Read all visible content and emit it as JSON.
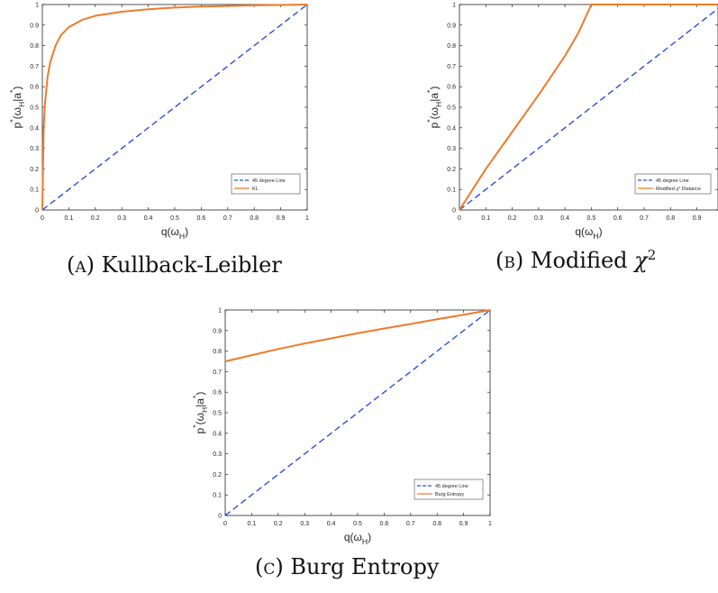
{
  "charts": [
    {
      "id": "a",
      "caption_tag": "(a)",
      "caption_text": "Kullback-Leibler",
      "chart_data": {
        "type": "line",
        "xlabel": "q(ω_H)",
        "ylabel": "p*(ω_H|a*)",
        "xlim": [
          0,
          1
        ],
        "ylim": [
          0,
          1
        ],
        "xticks": [
          0,
          0.1,
          0.2,
          0.3,
          0.4,
          0.5,
          0.6,
          0.7,
          0.8,
          0.9,
          1
        ],
        "yticks": [
          0,
          0.1,
          0.2,
          0.3,
          0.4,
          0.5,
          0.6,
          0.7,
          0.8,
          0.9,
          1
        ],
        "grid": false,
        "legend": "bottom-right",
        "series": [
          {
            "name": "45 degree Line",
            "color": "#2b4ee0",
            "style": "dashed",
            "x": [
              0,
              1
            ],
            "y": [
              0,
              1
            ]
          },
          {
            "name": "KL",
            "color": "#f07a2a",
            "style": "solid",
            "x": [
              0,
              0.005,
              0.01,
              0.02,
              0.03,
              0.05,
              0.07,
              0.1,
              0.15,
              0.2,
              0.3,
              0.4,
              0.5,
              0.6,
              0.7,
              0.8,
              0.9,
              1
            ],
            "y": [
              0,
              0.4,
              0.52,
              0.65,
              0.72,
              0.8,
              0.85,
              0.89,
              0.925,
              0.945,
              0.965,
              0.977,
              0.985,
              0.99,
              0.993,
              0.996,
              0.998,
              1
            ]
          }
        ]
      }
    },
    {
      "id": "b",
      "caption_tag": "(b)",
      "caption_text": "Modified ",
      "caption_sym": "χ",
      "caption_sup": "2",
      "chart_data": {
        "type": "line",
        "xlabel": "q(ω_H)",
        "ylabel": "p*(ω_H|a*)",
        "xlim": [
          0,
          0.98
        ],
        "ylim": [
          0,
          1
        ],
        "xticks": [
          0,
          0.1,
          0.2,
          0.3,
          0.4,
          0.5,
          0.6,
          0.7,
          0.8,
          0.9
        ],
        "yticks": [
          0,
          0.1,
          0.2,
          0.3,
          0.4,
          0.5,
          0.6,
          0.7,
          0.8,
          0.9,
          1
        ],
        "grid": false,
        "legend": "bottom-right",
        "series": [
          {
            "name": "45 degree Line",
            "color": "#2b4ee0",
            "style": "dashed",
            "x": [
              0,
              0.98
            ],
            "y": [
              0,
              0.98
            ]
          },
          {
            "name": "Modified χ² Distance",
            "color": "#f07a2a",
            "style": "solid",
            "x": [
              0,
              0.05,
              0.1,
              0.15,
              0.2,
              0.25,
              0.3,
              0.35,
              0.4,
              0.45,
              0.5,
              0.6,
              0.7,
              0.8,
              0.9,
              0.98
            ],
            "y": [
              0,
              0.1,
              0.2,
              0.29,
              0.38,
              0.47,
              0.56,
              0.655,
              0.75,
              0.86,
              1,
              1,
              1,
              1,
              1,
              1
            ]
          }
        ]
      }
    },
    {
      "id": "c",
      "caption_tag": "(c)",
      "caption_text": "Burg Entropy",
      "chart_data": {
        "type": "line",
        "xlabel": "q(ω_H)",
        "ylabel": "p*(ω_H|a*)",
        "xlim": [
          0,
          1
        ],
        "ylim": [
          0,
          1
        ],
        "xticks": [
          0,
          0.1,
          0.2,
          0.3,
          0.4,
          0.5,
          0.6,
          0.7,
          0.8,
          0.9,
          1
        ],
        "yticks": [
          0,
          0.1,
          0.2,
          0.3,
          0.4,
          0.5,
          0.6,
          0.7,
          0.8,
          0.9,
          1
        ],
        "grid": false,
        "legend": "bottom-right",
        "series": [
          {
            "name": "45 degree Line",
            "color": "#2b4ee0",
            "style": "dashed",
            "x": [
              0,
              1
            ],
            "y": [
              0,
              1
            ]
          },
          {
            "name": "Burg Entropy",
            "color": "#f07a2a",
            "style": "solid",
            "x": [
              0,
              0.1,
              0.2,
              0.3,
              0.4,
              0.5,
              0.6,
              0.7,
              0.8,
              0.9,
              1
            ],
            "y": [
              0.75,
              0.78,
              0.81,
              0.837,
              0.862,
              0.887,
              0.91,
              0.932,
              0.955,
              0.977,
              1
            ]
          }
        ]
      }
    }
  ]
}
